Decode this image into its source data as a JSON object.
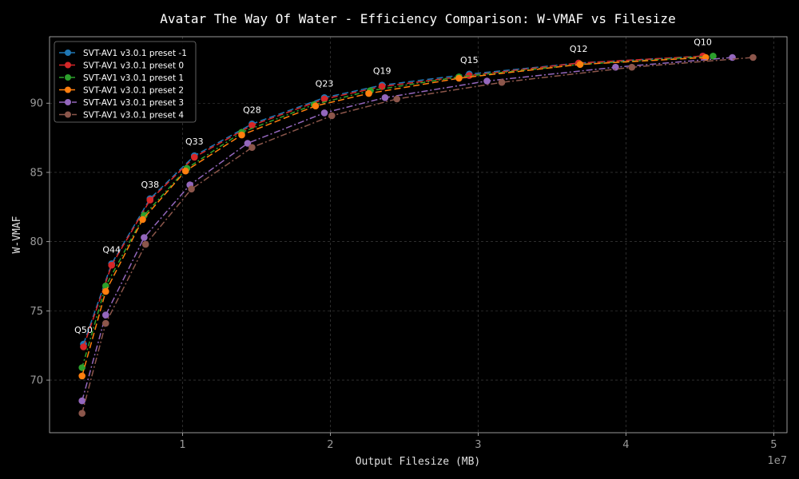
{
  "chart_data": {
    "type": "line",
    "title": "Avatar The Way Of Water - Efficiency Comparison: W-VMAF vs Filesize",
    "xlabel": "Output Filesize (MB)",
    "ylabel": "W-VMAF",
    "x_exponent_label": "1e7",
    "xlim": [
      1000000,
      50900000
    ],
    "ylim": [
      66.2,
      94.8
    ],
    "xticks": [
      10000000,
      20000000,
      30000000,
      40000000,
      50000000
    ],
    "xtick_labels": [
      "1",
      "2",
      "3",
      "4",
      "5"
    ],
    "yticks": [
      70,
      75,
      80,
      85,
      90
    ],
    "ytick_labels": [
      "70",
      "75",
      "80",
      "85",
      "90"
    ],
    "grid": true,
    "legend_position": "top-left",
    "series": [
      {
        "name": "SVT-AV1 v3.0.1 preset -1",
        "color": "#1f77b4",
        "dash": "8 4",
        "x": [
          3300000,
          5200000,
          7800000,
          10800000,
          14700000,
          19600000,
          23500000,
          29400000,
          36800000,
          45200000
        ],
        "y": [
          72.6,
          78.4,
          83.1,
          86.2,
          88.5,
          90.4,
          91.3,
          92.1,
          92.9,
          93.4
        ]
      },
      {
        "name": "SVT-AV1 v3.0.1 preset 0",
        "color": "#d62728",
        "dash": "8 4",
        "x": [
          3300000,
          5200000,
          7800000,
          10800000,
          14700000,
          19600000,
          23500000,
          29400000,
          36800000,
          45200000
        ],
        "y": [
          72.4,
          78.3,
          83.0,
          86.1,
          88.4,
          90.3,
          91.2,
          92.0,
          92.9,
          93.4
        ]
      },
      {
        "name": "SVT-AV1 v3.0.1 preset 1",
        "color": "#2ca02c",
        "dash": "6 3 2 3",
        "x": [
          3200000,
          4800000,
          7400000,
          10300000,
          14000000,
          18900000,
          22700000,
          28700000,
          36900000,
          45900000
        ],
        "y": [
          70.9,
          76.8,
          81.9,
          85.3,
          87.9,
          89.9,
          90.9,
          91.9,
          92.8,
          93.4
        ]
      },
      {
        "name": "SVT-AV1 v3.0.1 preset 2",
        "color": "#ff7f0e",
        "dash": "8 4",
        "x": [
          3200000,
          4800000,
          7300000,
          10200000,
          14000000,
          19000000,
          22600000,
          28700000,
          36900000,
          45400000
        ],
        "y": [
          70.3,
          76.4,
          81.6,
          85.1,
          87.7,
          89.8,
          90.7,
          91.8,
          92.8,
          93.3
        ]
      },
      {
        "name": "SVT-AV1 v3.0.1 preset 3",
        "color": "#9467bd",
        "dash": "8 3 2 3",
        "x": [
          3200000,
          4800000,
          7400000,
          10500000,
          14400000,
          19600000,
          23700000,
          30600000,
          39300000,
          47200000
        ],
        "y": [
          68.5,
          74.7,
          80.3,
          84.1,
          87.1,
          89.3,
          90.4,
          91.6,
          92.6,
          93.3
        ]
      },
      {
        "name": "SVT-AV1 v3.0.1 preset 4",
        "color": "#8c564b",
        "dash": "8 3 2 3",
        "x": [
          3200000,
          4800000,
          7500000,
          10600000,
          14700000,
          20100000,
          24500000,
          31600000,
          40400000,
          48600000
        ],
        "y": [
          67.6,
          74.1,
          79.8,
          83.8,
          86.8,
          89.1,
          90.3,
          91.5,
          92.6,
          93.3
        ]
      }
    ],
    "annotations": [
      {
        "text": "Q50",
        "x": 3300000,
        "y": 72.6
      },
      {
        "text": "Q44",
        "x": 5200000,
        "y": 78.4
      },
      {
        "text": "Q38",
        "x": 7800000,
        "y": 83.1
      },
      {
        "text": "Q33",
        "x": 10800000,
        "y": 86.2
      },
      {
        "text": "Q28",
        "x": 14700000,
        "y": 88.5
      },
      {
        "text": "Q23",
        "x": 19600000,
        "y": 90.4
      },
      {
        "text": "Q19",
        "x": 23500000,
        "y": 91.3
      },
      {
        "text": "Q15",
        "x": 29400000,
        "y": 92.1
      },
      {
        "text": "Q12",
        "x": 36800000,
        "y": 92.9
      },
      {
        "text": "Q10",
        "x": 45200000,
        "y": 93.4
      }
    ]
  }
}
